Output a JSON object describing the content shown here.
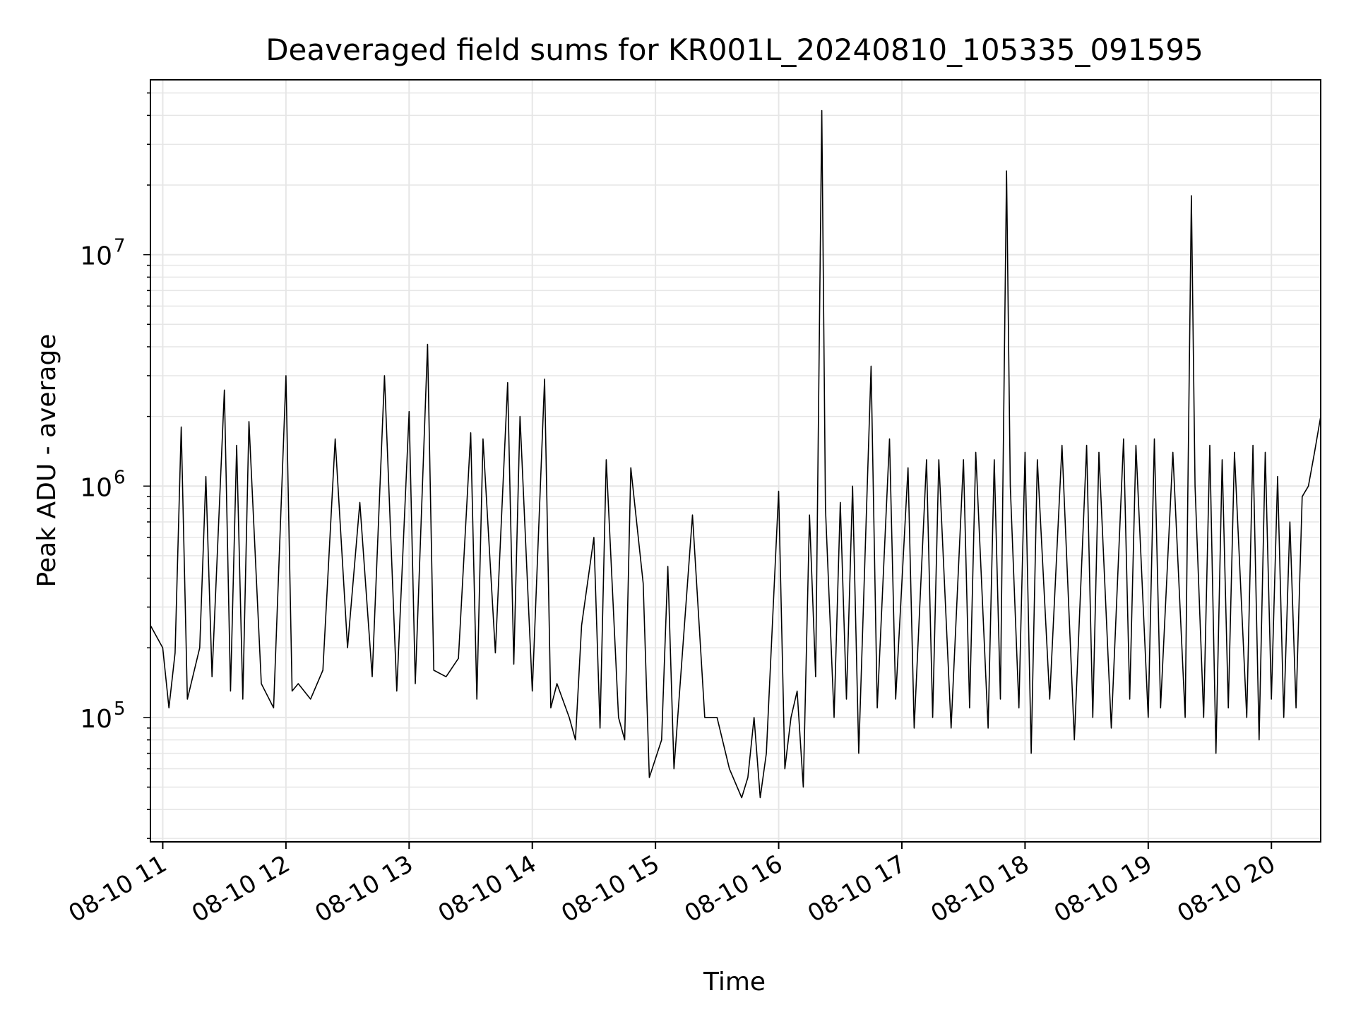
{
  "chart_data": {
    "type": "line",
    "title": "Deaveraged field sums for KR001L_20240810_105335_091595",
    "xlabel": "Time",
    "ylabel": "Peak ADU - average",
    "yscale": "log",
    "ylim": [
      29000,
      57000000
    ],
    "xlim_hours": [
      10.9,
      20.4
    ],
    "grid": true,
    "line_color": "#000000",
    "grid_color": "#e6e6e6",
    "x_ticks": [
      {
        "hour": 11,
        "label": "08-10 11"
      },
      {
        "hour": 12,
        "label": "08-10 12"
      },
      {
        "hour": 13,
        "label": "08-10 13"
      },
      {
        "hour": 14,
        "label": "08-10 14"
      },
      {
        "hour": 15,
        "label": "08-10 15"
      },
      {
        "hour": 16,
        "label": "08-10 16"
      },
      {
        "hour": 17,
        "label": "08-10 17"
      },
      {
        "hour": 18,
        "label": "08-10 18"
      },
      {
        "hour": 19,
        "label": "08-10 19"
      },
      {
        "hour": 20,
        "label": "08-10 20"
      }
    ],
    "y_ticks": [
      {
        "value": 100000,
        "base": "10",
        "exp": "5"
      },
      {
        "value": 1000000,
        "base": "10",
        "exp": "6"
      },
      {
        "value": 10000000,
        "base": "10",
        "exp": "7"
      }
    ],
    "series": [
      {
        "points": [
          [
            10.9,
            250000.0
          ],
          [
            11.0,
            200000.0
          ],
          [
            11.05,
            110000.0
          ],
          [
            11.1,
            190000.0
          ],
          [
            11.15,
            1800000.0
          ],
          [
            11.2,
            120000.0
          ],
          [
            11.3,
            200000.0
          ],
          [
            11.35,
            1100000.0
          ],
          [
            11.4,
            150000.0
          ],
          [
            11.5,
            2600000.0
          ],
          [
            11.55,
            130000.0
          ],
          [
            11.6,
            1500000.0
          ],
          [
            11.65,
            120000.0
          ],
          [
            11.7,
            1900000.0
          ],
          [
            11.8,
            140000.0
          ],
          [
            11.9,
            110000.0
          ],
          [
            12.0,
            3000000.0
          ],
          [
            12.05,
            130000.0
          ],
          [
            12.1,
            140000.0
          ],
          [
            12.2,
            120000.0
          ],
          [
            12.3,
            160000.0
          ],
          [
            12.4,
            1600000.0
          ],
          [
            12.5,
            200000.0
          ],
          [
            12.6,
            850000.0
          ],
          [
            12.7,
            150000.0
          ],
          [
            12.8,
            3000000.0
          ],
          [
            12.9,
            130000.0
          ],
          [
            13.0,
            2100000.0
          ],
          [
            13.05,
            140000.0
          ],
          [
            13.15,
            4100000.0
          ],
          [
            13.2,
            160000.0
          ],
          [
            13.3,
            150000.0
          ],
          [
            13.4,
            180000.0
          ],
          [
            13.5,
            1700000.0
          ],
          [
            13.55,
            120000.0
          ],
          [
            13.6,
            1600000.0
          ],
          [
            13.7,
            190000.0
          ],
          [
            13.8,
            2800000.0
          ],
          [
            13.85,
            170000.0
          ],
          [
            13.9,
            2000000.0
          ],
          [
            14.0,
            130000.0
          ],
          [
            14.1,
            2900000.0
          ],
          [
            14.15,
            110000.0
          ],
          [
            14.2,
            140000.0
          ],
          [
            14.3,
            100000.0
          ],
          [
            14.35,
            80000.0
          ],
          [
            14.4,
            250000.0
          ],
          [
            14.5,
            600000.0
          ],
          [
            14.55,
            90000.0
          ],
          [
            14.6,
            1300000.0
          ],
          [
            14.7,
            100000.0
          ],
          [
            14.75,
            80000.0
          ],
          [
            14.8,
            1200000.0
          ],
          [
            14.9,
            380000.0
          ],
          [
            14.95,
            55000.0
          ],
          [
            15.05,
            80000.0
          ],
          [
            15.1,
            450000.0
          ],
          [
            15.15,
            60000.0
          ],
          [
            15.3,
            750000.0
          ],
          [
            15.4,
            100000.0
          ],
          [
            15.5,
            100000.0
          ],
          [
            15.6,
            60000.0
          ],
          [
            15.7,
            45000.0
          ],
          [
            15.75,
            55000.0
          ],
          [
            15.8,
            100000.0
          ],
          [
            15.85,
            45000.0
          ],
          [
            15.9,
            70000.0
          ],
          [
            16.0,
            950000.0
          ],
          [
            16.05,
            60000.0
          ],
          [
            16.1,
            100000.0
          ],
          [
            16.15,
            130000.0
          ],
          [
            16.2,
            50000.0
          ],
          [
            16.25,
            750000.0
          ],
          [
            16.3,
            150000.0
          ],
          [
            16.35,
            42000000.0
          ],
          [
            16.38,
            800000.0
          ],
          [
            16.45,
            100000.0
          ],
          [
            16.5,
            850000.0
          ],
          [
            16.55,
            120000.0
          ],
          [
            16.6,
            1000000.0
          ],
          [
            16.65,
            70000.0
          ],
          [
            16.75,
            3300000.0
          ],
          [
            16.8,
            110000.0
          ],
          [
            16.9,
            1600000.0
          ],
          [
            16.95,
            120000.0
          ],
          [
            17.05,
            1200000.0
          ],
          [
            17.1,
            90000.0
          ],
          [
            17.2,
            1300000.0
          ],
          [
            17.25,
            100000.0
          ],
          [
            17.3,
            1300000.0
          ],
          [
            17.4,
            90000.0
          ],
          [
            17.5,
            1300000.0
          ],
          [
            17.55,
            110000.0
          ],
          [
            17.6,
            1400000.0
          ],
          [
            17.7,
            90000.0
          ],
          [
            17.75,
            1300000.0
          ],
          [
            17.8,
            120000.0
          ],
          [
            17.85,
            23000000.0
          ],
          [
            17.88,
            1000000.0
          ],
          [
            17.95,
            110000.0
          ],
          [
            18.0,
            1400000.0
          ],
          [
            18.05,
            70000.0
          ],
          [
            18.1,
            1300000.0
          ],
          [
            18.2,
            120000.0
          ],
          [
            18.3,
            1500000.0
          ],
          [
            18.4,
            80000.0
          ],
          [
            18.5,
            1500000.0
          ],
          [
            18.55,
            100000.0
          ],
          [
            18.6,
            1400000.0
          ],
          [
            18.7,
            90000.0
          ],
          [
            18.8,
            1600000.0
          ],
          [
            18.85,
            120000.0
          ],
          [
            18.9,
            1500000.0
          ],
          [
            19.0,
            100000.0
          ],
          [
            19.05,
            1600000.0
          ],
          [
            19.1,
            110000.0
          ],
          [
            19.2,
            1400000.0
          ],
          [
            19.3,
            100000.0
          ],
          [
            19.35,
            18000000.0
          ],
          [
            19.38,
            1000000.0
          ],
          [
            19.45,
            100000.0
          ],
          [
            19.5,
            1500000.0
          ],
          [
            19.55,
            70000.0
          ],
          [
            19.6,
            1300000.0
          ],
          [
            19.65,
            110000.0
          ],
          [
            19.7,
            1400000.0
          ],
          [
            19.8,
            100000.0
          ],
          [
            19.85,
            1500000.0
          ],
          [
            19.9,
            80000.0
          ],
          [
            19.95,
            1400000.0
          ],
          [
            20.0,
            120000.0
          ],
          [
            20.05,
            1100000.0
          ],
          [
            20.1,
            100000.0
          ],
          [
            20.15,
            700000.0
          ],
          [
            20.2,
            110000.0
          ],
          [
            20.25,
            900000.0
          ],
          [
            20.3,
            1000000.0
          ],
          [
            20.35,
            1400000.0
          ],
          [
            20.4,
            2000000.0
          ]
        ]
      }
    ]
  }
}
